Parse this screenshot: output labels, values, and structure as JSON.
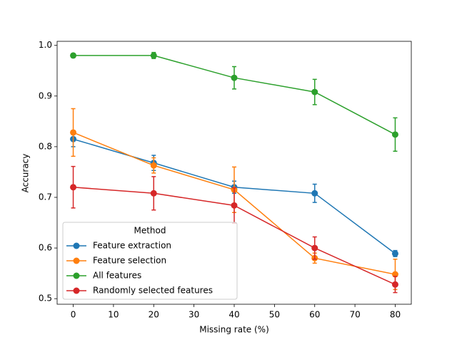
{
  "chart_data": {
    "type": "errorbar-line",
    "x_label": "Missing rate (%)",
    "y_label": "Accuracy",
    "x": [
      0,
      20,
      40,
      60,
      80
    ],
    "series": [
      {
        "name": "Feature extraction",
        "color": "#1f77b4",
        "values": [
          0.815,
          0.768,
          0.72,
          0.708,
          0.589
        ],
        "errors": [
          0.015,
          0.015,
          0.012,
          0.018,
          0.006
        ]
      },
      {
        "name": "Feature selection",
        "color": "#ff7f0e",
        "values": [
          0.828,
          0.763,
          0.715,
          0.58,
          0.548
        ],
        "errors": [
          0.047,
          0.015,
          0.045,
          0.01,
          0.03
        ]
      },
      {
        "name": "All features",
        "color": "#2ca02c",
        "values": [
          0.98,
          0.98,
          0.936,
          0.908,
          0.824
        ],
        "errors": [
          0.002,
          0.006,
          0.022,
          0.025,
          0.033
        ]
      },
      {
        "name": "Randomly selected features",
        "color": "#d62728",
        "values": [
          0.72,
          0.708,
          0.684,
          0.6,
          0.528
        ],
        "errors": [
          0.041,
          0.033,
          0.035,
          0.022,
          0.016
        ]
      }
    ],
    "xlim": [
      -4,
      84
    ],
    "ylim": [
      0.489,
      1.008
    ],
    "xticks": [
      0,
      10,
      20,
      30,
      40,
      50,
      60,
      70,
      80
    ],
    "yticks": [
      0.5,
      0.6,
      0.7,
      0.8,
      0.9,
      {
        "value": 1,
        "label": "1.0"
      }
    ],
    "legend_title": "Method",
    "legend_position": "lower left",
    "grid": false
  }
}
